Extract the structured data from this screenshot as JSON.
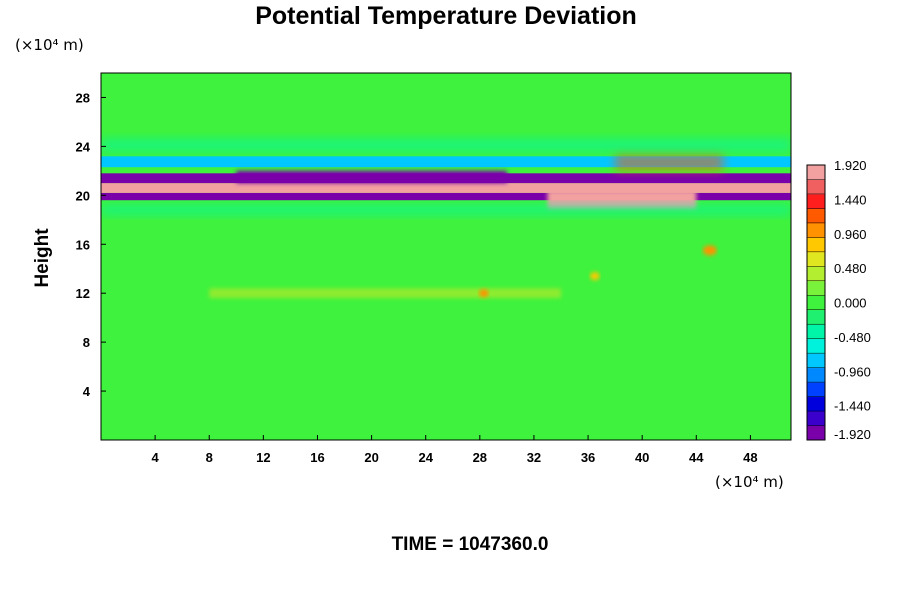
{
  "chart_data": {
    "type": "heatmap",
    "title": "Potential Temperature Deviation",
    "xlabel": "",
    "ylabel": "Height",
    "x_unit": "(×10⁴ m)",
    "y_unit": "(×10⁴ m)",
    "xlim": [
      0,
      51
    ],
    "ylim": [
      0,
      30
    ],
    "x_ticks": [
      4,
      8,
      12,
      16,
      20,
      24,
      28,
      32,
      36,
      40,
      44,
      48
    ],
    "y_ticks": [
      4,
      8,
      12,
      16,
      20,
      24,
      28
    ],
    "colorbar": {
      "range": [
        -1.92,
        1.92
      ],
      "tick_values": [
        1.92,
        1.44,
        0.96,
        0.48,
        0.0,
        -0.48,
        -0.96,
        -1.44,
        -1.92
      ],
      "tick_labels": [
        "1.920",
        "1.440",
        "0.960",
        "0.480",
        "0.000",
        "-0.480",
        "-0.960",
        "-1.440",
        "-1.920"
      ]
    },
    "bands": [
      {
        "y_min": 0,
        "y_max": 11,
        "value": 0.0
      },
      {
        "y_min": 11,
        "y_max": 19,
        "value": 0.05
      },
      {
        "y_min": 19.6,
        "y_max": 20.2,
        "value": -1.92
      },
      {
        "y_min": 20.2,
        "y_max": 21.0,
        "value": 1.92
      },
      {
        "y_min": 21.0,
        "y_max": 21.8,
        "value": -1.92
      },
      {
        "y_min": 22.3,
        "y_max": 23.2,
        "value": -0.9
      },
      {
        "y_min": 23.2,
        "y_max": 30,
        "value": 0.0
      }
    ],
    "footer": "TIME = 1047360.0"
  }
}
